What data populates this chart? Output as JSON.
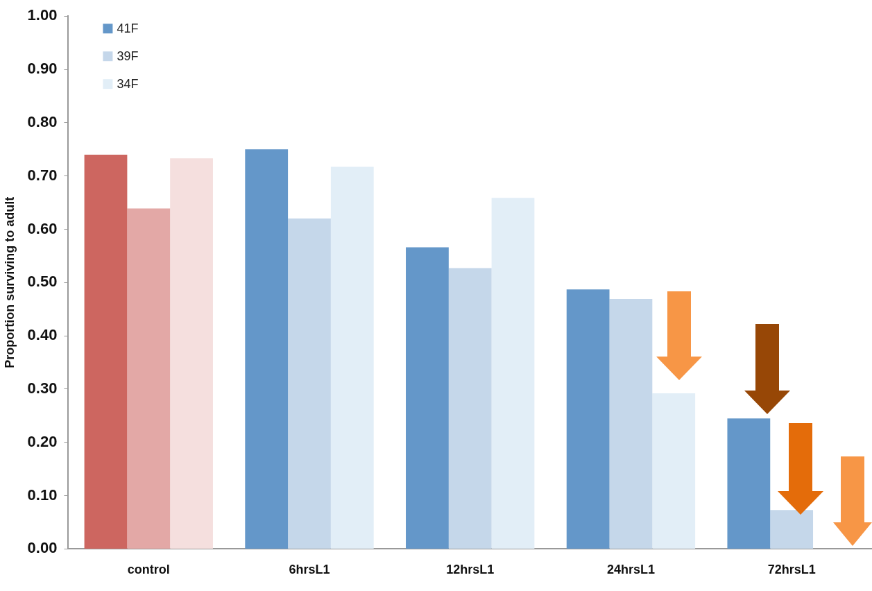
{
  "chart_data": {
    "type": "bar",
    "ylabel": "Proportion surviving to adult",
    "categories": [
      "control",
      "6hrsL1",
      "12hrsL1",
      "24hrsL1",
      "72hrsL1"
    ],
    "series": [
      {
        "name": "41F",
        "color": "#6497c9",
        "colors": [
          "#cd6660",
          "#6497c9",
          "#6497c9",
          "#6497c9",
          "#6497c9"
        ],
        "values": [
          0.74,
          0.75,
          0.566,
          0.487,
          0.245
        ]
      },
      {
        "name": "39F",
        "color": "#c5d7ea",
        "colors": [
          "#e3a8a6",
          "#c5d7ea",
          "#c5d7ea",
          "#c5d7ea",
          "#c5d7ea"
        ],
        "values": [
          0.639,
          0.62,
          0.527,
          0.469,
          0.073
        ]
      },
      {
        "name": "34F",
        "color": "#e2eef7",
        "colors": [
          "#f5dfde",
          "#e2eef7",
          "#e2eef7",
          "#e2eef7",
          "#e2eef7"
        ],
        "values": [
          0.733,
          0.717,
          0.659,
          0.292,
          0
        ]
      }
    ],
    "ylim": [
      0,
      1
    ],
    "yticks": [
      {
        "value": 0,
        "label": "0.00"
      },
      {
        "value": 0.1,
        "label": "0.10"
      },
      {
        "value": 0.2,
        "label": "0.20"
      },
      {
        "value": 0.3,
        "label": "0.30"
      },
      {
        "value": 0.4,
        "label": "0.40"
      },
      {
        "value": 0.5,
        "label": "0.50"
      },
      {
        "value": 0.6,
        "label": "0.60"
      },
      {
        "value": 0.7,
        "label": "0.70"
      },
      {
        "value": 0.8,
        "label": "0.80"
      },
      {
        "value": 0.9,
        "label": "0.90"
      },
      {
        "value": 1,
        "label": "1.00"
      }
    ],
    "grid": false,
    "legend": "top left"
  }
}
